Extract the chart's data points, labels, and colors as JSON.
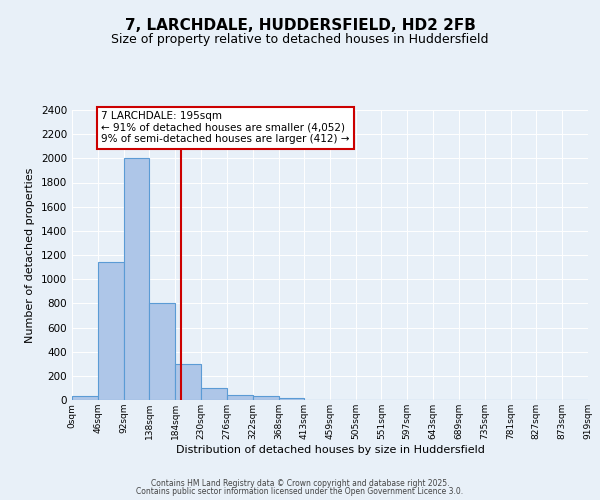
{
  "title": "7, LARCHDALE, HUDDERSFIELD, HD2 2FB",
  "subtitle": "Size of property relative to detached houses in Huddersfield",
  "xlabel": "Distribution of detached houses by size in Huddersfield",
  "ylabel": "Number of detached properties",
  "bar_values": [
    30,
    1140,
    2000,
    800,
    300,
    100,
    45,
    35,
    20,
    0,
    0,
    0,
    0,
    0,
    0,
    0,
    0,
    0,
    0,
    0
  ],
  "bin_edges": [
    0,
    46,
    92,
    138,
    184,
    230,
    276,
    322,
    368,
    413,
    459,
    505,
    551,
    597,
    643,
    689,
    735,
    781,
    827,
    873,
    919
  ],
  "x_tick_labels": [
    "0sqm",
    "46sqm",
    "92sqm",
    "138sqm",
    "184sqm",
    "230sqm",
    "276sqm",
    "322sqm",
    "368sqm",
    "413sqm",
    "459sqm",
    "505sqm",
    "551sqm",
    "597sqm",
    "643sqm",
    "689sqm",
    "735sqm",
    "781sqm",
    "827sqm",
    "873sqm",
    "919sqm"
  ],
  "bar_color": "#aec6e8",
  "bar_edge_color": "#5b9bd5",
  "red_line_x": 195,
  "ylim": [
    0,
    2400
  ],
  "yticks": [
    0,
    200,
    400,
    600,
    800,
    1000,
    1200,
    1400,
    1600,
    1800,
    2000,
    2200,
    2400
  ],
  "annotation_text": "7 LARCHDALE: 195sqm\n← 91% of detached houses are smaller (4,052)\n9% of semi-detached houses are larger (412) →",
  "annotation_box_color": "#ffffff",
  "annotation_box_edge_color": "#cc0000",
  "red_line_color": "#cc0000",
  "background_color": "#e8f0f8",
  "fig_background_color": "#e8f0f8",
  "footer_line1": "Contains HM Land Registry data © Crown copyright and database right 2025.",
  "footer_line2": "Contains public sector information licensed under the Open Government Licence 3.0."
}
